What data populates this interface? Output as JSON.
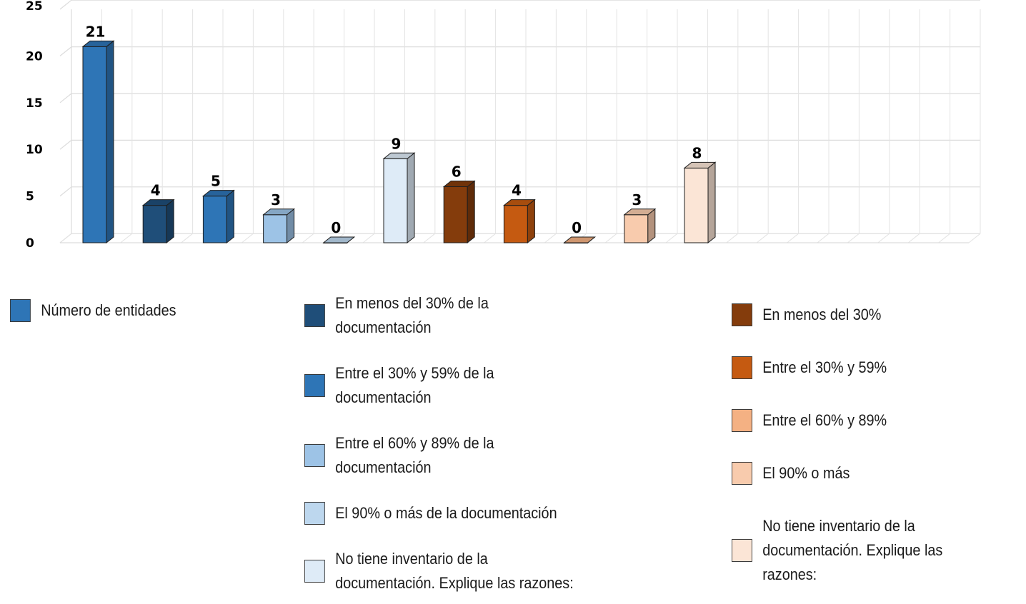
{
  "chart_data": {
    "type": "bar",
    "title": "",
    "ylim": [
      0,
      25
    ],
    "yticks": [
      "0",
      "5",
      "10",
      "15",
      "20",
      "25"
    ],
    "grid": true,
    "legend_position": "bottom",
    "series": [
      {
        "name": "Número de entidades",
        "value": 21,
        "label": "21",
        "color": "#2e75b6"
      },
      {
        "name": "En menos del 30% de la documentación",
        "value": 4,
        "label": "4",
        "color": "#1f4e79"
      },
      {
        "name": "Entre el 30% y 59% de la documentación",
        "value": 5,
        "label": "5",
        "color": "#2e75b6"
      },
      {
        "name": "Entre el 60% y 89% de la documentación",
        "value": 3,
        "label": "3",
        "color": "#9dc3e6"
      },
      {
        "name": "El 90% o más de la documentación",
        "value": 0,
        "label": "0",
        "color": "#bdd7ee"
      },
      {
        "name": "No tiene inventario de la documentación. Explique las razones:",
        "value": 9,
        "label": "9",
        "color": "#deebf7"
      },
      {
        "name": "En menos del 30%",
        "value": 6,
        "label": "6",
        "color": "#843c0c"
      },
      {
        "name": "Entre el 30% y 59%",
        "value": 4,
        "label": "4",
        "color": "#c55a11"
      },
      {
        "name": "Entre el 60% y 89%",
        "value": 0,
        "label": "0",
        "color": "#f4b183"
      },
      {
        "name": "El 90% o más",
        "value": 3,
        "label": "3",
        "color": "#f8cbad"
      },
      {
        "name": "No tiene inventario de la documentación. Explique las razones:",
        "value": 8,
        "label": "8",
        "color": "#fbe5d6"
      }
    ]
  },
  "legend": {
    "group1": [
      {
        "label": "Número de entidades",
        "color": "#2e75b6"
      }
    ],
    "group2": [
      {
        "label": "En menos del 30% de la documentación",
        "color": "#1f4e79"
      },
      {
        "label": "Entre el 30% y 59% de la documentación",
        "color": "#2e75b6"
      },
      {
        "label": "Entre el 60% y 89% de la documentación",
        "color": "#9dc3e6"
      },
      {
        "label": "El 90% o más de la documentación",
        "color": "#bdd7ee"
      },
      {
        "label": "No tiene inventario de la documentación. Explique las razones:",
        "color": "#deebf7"
      }
    ],
    "group3": [
      {
        "label": "En menos del 30%",
        "color": "#843c0c"
      },
      {
        "label": "Entre el 30% y 59%",
        "color": "#c55a11"
      },
      {
        "label": "Entre el 60% y 89%",
        "color": "#f4b183"
      },
      {
        "label": "El 90% o más",
        "color": "#f8cbad"
      },
      {
        "label": "No tiene inventario de la documentación. Explique las razones:",
        "color": "#fbe5d6"
      }
    ]
  }
}
